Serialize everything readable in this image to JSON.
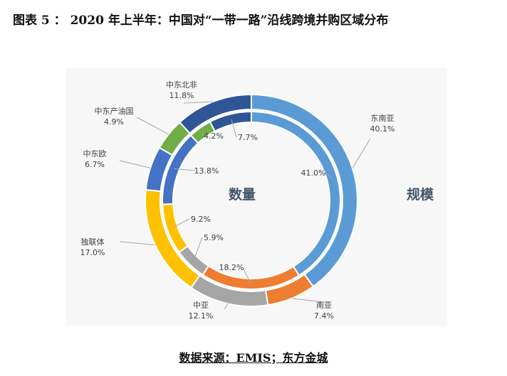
{
  "figure": {
    "title": "图表 5 ：  2020 年上半年：中国对“一带一路”沿线跨境并购区域分布",
    "source": "数据来源：EMIS；东方金城"
  },
  "colors": {
    "东南亚": "#5b9bd5",
    "南亚": "#ed7d31",
    "中亚": "#a5a5a5",
    "独联体": "#ffc000",
    "中东欧": "#4472c4",
    "中东产油国": "#70ad47",
    "中东北非": "#2f5597"
  },
  "chart_data": {
    "type": "donut",
    "categories": [
      "东南亚",
      "南亚",
      "中亚",
      "独联体",
      "中东欧",
      "中东产油国",
      "中东北非"
    ],
    "series": [
      {
        "name": "规模",
        "ring": "outer",
        "values": [
          40.1,
          7.4,
          12.1,
          17.0,
          6.7,
          4.9,
          11.8
        ],
        "labels": [
          "40.1%",
          "7.4%",
          "12.1%",
          "17.0%",
          "6.7%",
          "4.9%",
          "11.8%"
        ]
      },
      {
        "name": "数量",
        "ring": "inner",
        "values": [
          41.0,
          18.2,
          5.9,
          9.2,
          13.8,
          4.2,
          7.7
        ],
        "labels": [
          "41.0%",
          "18.2%",
          "5.9%",
          "9.2%",
          "13.8%",
          "4.2%",
          "7.7%"
        ]
      }
    ]
  }
}
